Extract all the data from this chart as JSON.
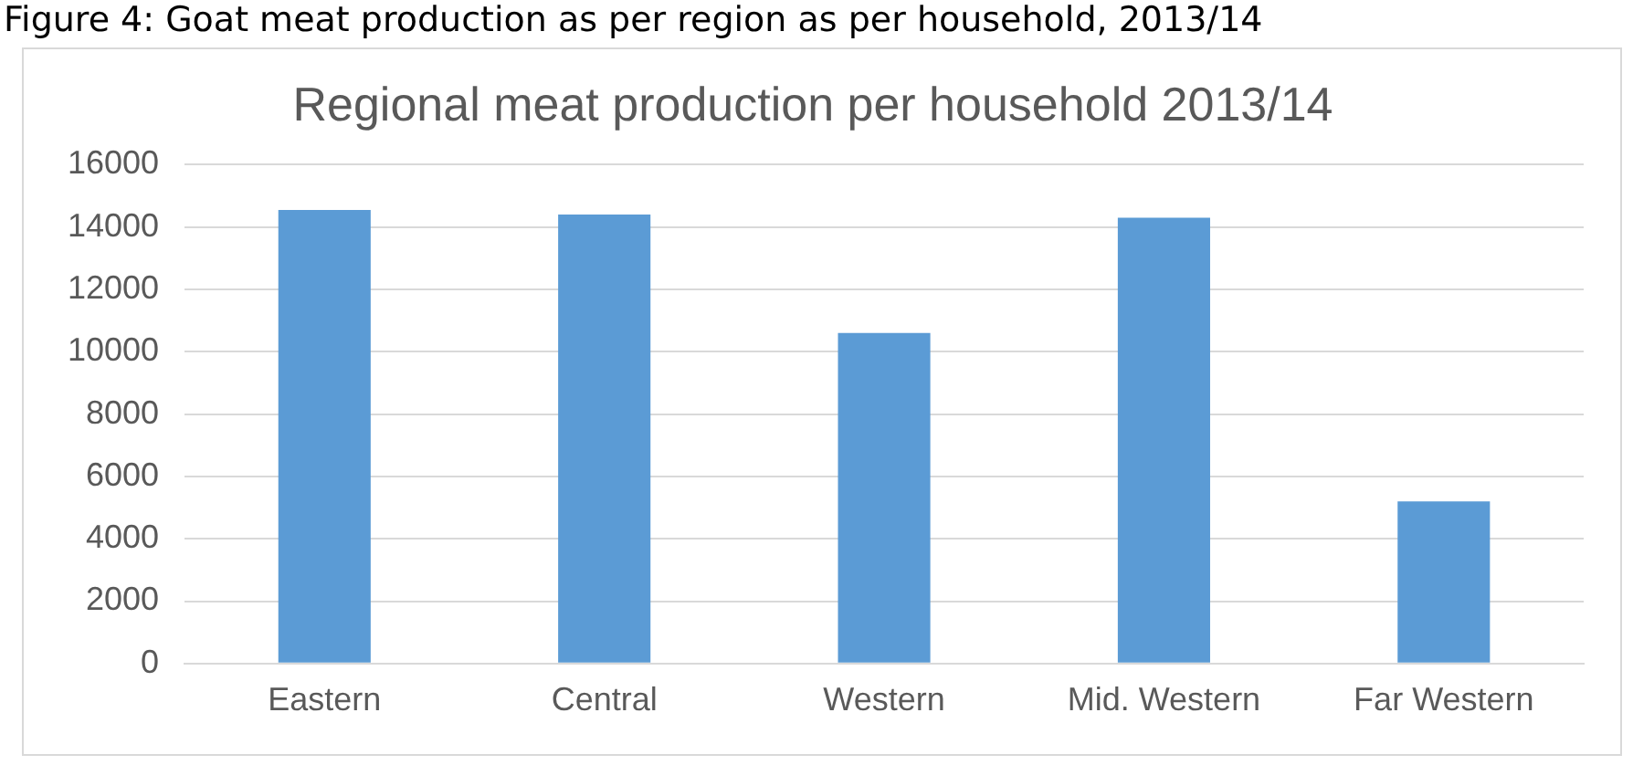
{
  "chart_data": {
    "type": "bar",
    "title": "Regional meat production per household 2013/14",
    "annotations": [
      "Figure 4: Goat meat production as per region as per household, 2013/14"
    ],
    "categories": [
      "Eastern",
      "Central",
      "Western",
      "Mid. Western",
      "Far Western"
    ],
    "values": [
      14550,
      14400,
      10600,
      14300,
      5200
    ],
    "color": "#5b9bd5",
    "ylim": [
      0,
      16000
    ],
    "yticks": [
      0,
      2000,
      4000,
      6000,
      8000,
      10000,
      12000,
      14000,
      16000
    ],
    "grid": "y",
    "legend": false
  }
}
